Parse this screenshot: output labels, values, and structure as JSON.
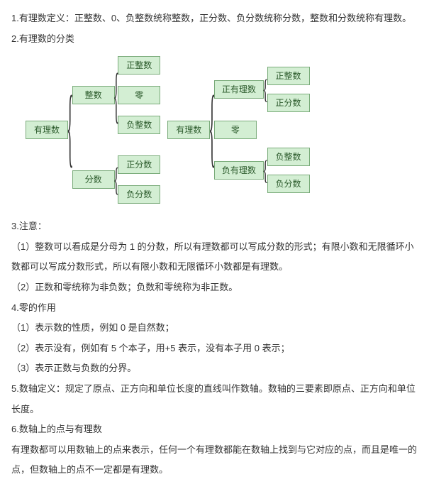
{
  "colors": {
    "node_fill": "#d3eed3",
    "node_border": "#7aab7a",
    "node_text": "#2b5a2b",
    "body_text": "#333333",
    "background": "#ffffff"
  },
  "text": {
    "p1": "1.有理数定义：正整数、0、负整数统称整数，正分数、负分数统称分数，整数和分数统称有理数。",
    "p2": "2.有理数的分类",
    "p3": "3.注意：",
    "p3a": "（1）整数可以看成是分母为 1 的分数，所以有理数都可以写成分数的形式；有限小数和无限循环小数都可以写成分数形式，所以有限小数和无限循环小数都是有理数。",
    "p3b": "（2）正数和零统称为非负数；负数和零统称为非正数。",
    "p4": "4.零的作用",
    "p4a": "（1）表示数的性质，例如 0 是自然数；",
    "p4b": "（2）表示没有，例如有 5 个本子，用+5 表示，没有本子用 0 表示；",
    "p4c": "（3）表示正数与负数的分界。",
    "p5": "5.数轴定义：规定了原点、正方向和单位长度的直线叫作数轴。数轴的三要素即原点、正方向和单位长度。",
    "p6": "6.数轴上的点与有理数",
    "p6a": "有理数都可以用数轴上的点来表示，任何一个有理数都能在数轴上找到与它对应的点，而且是唯一的点，但数轴上的点不一定都是有理数。"
  },
  "left_tree": {
    "root": "有理数",
    "children": [
      {
        "label": "整数",
        "children": [
          "正整数",
          "零",
          "负整数"
        ]
      },
      {
        "label": "分数",
        "children": [
          "正分数",
          "负分数"
        ]
      }
    ]
  },
  "right_tree": {
    "root": "有理数",
    "children": [
      {
        "label": "正有理数",
        "children": [
          "正整数",
          "正分数"
        ]
      },
      {
        "label": "零"
      },
      {
        "label": "负有理数",
        "children": [
          "负整数",
          "负分数"
        ]
      }
    ]
  }
}
